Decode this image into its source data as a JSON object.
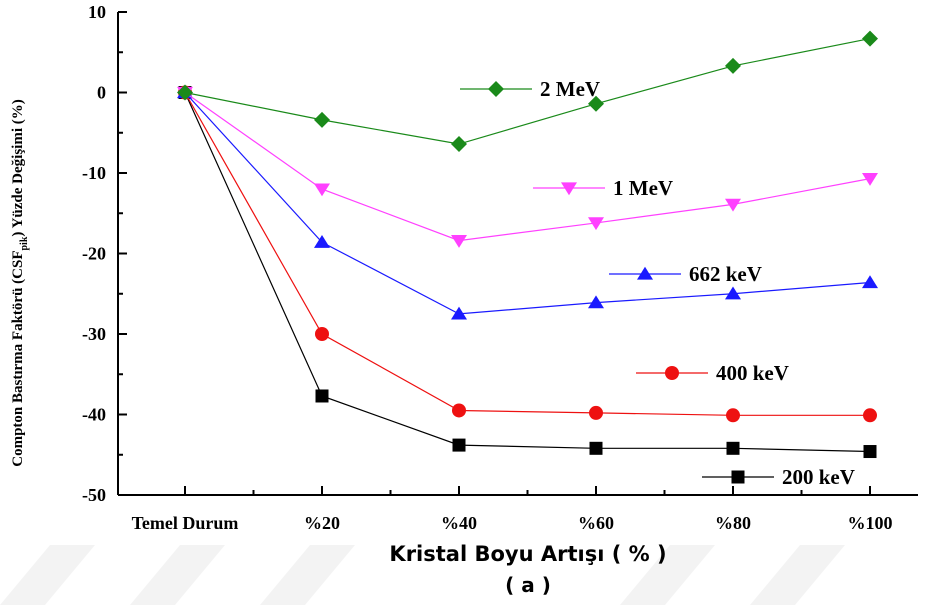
{
  "chart_data": {
    "type": "line",
    "categories": [
      "Temel Durum",
      "%20",
      "%40",
      "%60",
      "%80",
      "%100"
    ],
    "xlabel": "Kristal Boyu Artışı ( % )",
    "ylabel_main": "Compton Bastırma Faktörü (CSF",
    "ylabel_sub": "pik",
    "ylabel_tail": ") Yüzde Değişimi (%)",
    "ylim": [
      -50,
      10
    ],
    "yticks": [
      "10",
      "0",
      "-10",
      "-20",
      "-30",
      "-40",
      "-50"
    ],
    "caption": "( a )",
    "series": [
      {
        "name": "2 MeV",
        "values": [
          0,
          -3.4,
          -6.4,
          -1.4,
          3.3,
          6.7
        ],
        "color": "#1a8a1a",
        "marker": "diamond"
      },
      {
        "name": "1 MeV",
        "values": [
          0,
          -12.0,
          -18.4,
          -16.2,
          -13.9,
          -10.7
        ],
        "color": "#ff40ff",
        "marker": "triangle-down"
      },
      {
        "name": "662 keV",
        "values": [
          0,
          -18.6,
          -27.5,
          -26.1,
          -25.0,
          -23.6
        ],
        "color": "#1a1aff",
        "marker": "triangle-up"
      },
      {
        "name": "400 keV",
        "values": [
          0,
          -30.0,
          -39.5,
          -39.8,
          -40.1,
          -40.1
        ],
        "color": "#ee1111",
        "marker": "circle"
      },
      {
        "name": "200 keV",
        "values": [
          0,
          -37.7,
          -43.8,
          -44.2,
          -44.2,
          -44.6
        ],
        "color": "#000000",
        "marker": "square"
      }
    ]
  }
}
